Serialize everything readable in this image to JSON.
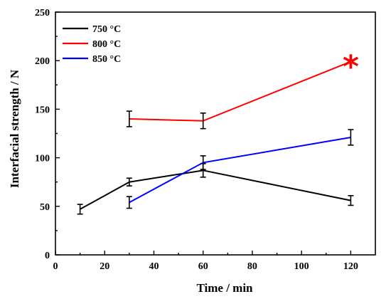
{
  "chart_data": {
    "type": "line",
    "xlabel": "Time / min",
    "ylabel": "Interfacial strength / N",
    "xlim": [
      0,
      130
    ],
    "ylim": [
      0,
      250
    ],
    "xticks": [
      0,
      20,
      40,
      60,
      80,
      100,
      120
    ],
    "yticks": [
      0,
      50,
      100,
      150,
      200,
      250
    ],
    "grid": false,
    "legend_position": "top-left",
    "series": [
      {
        "name": "750 °C",
        "color": "#000000",
        "points": [
          {
            "x": 10,
            "y": 47,
            "err": 5
          },
          {
            "x": 30,
            "y": 75,
            "err": 4
          },
          {
            "x": 60,
            "y": 87,
            "err": 7
          },
          {
            "x": 120,
            "y": 56,
            "err": 5
          }
        ]
      },
      {
        "name": "800 °C",
        "color": "#ff0000",
        "points": [
          {
            "x": 30,
            "y": 140,
            "err": 8
          },
          {
            "x": 60,
            "y": 138,
            "err": 8
          },
          {
            "x": 120,
            "y": 199,
            "err": 0
          }
        ]
      },
      {
        "name": "850 °C",
        "color": "#0000ff",
        "points": [
          {
            "x": 30,
            "y": 54,
            "err": 6
          },
          {
            "x": 60,
            "y": 95,
            "err": 7
          },
          {
            "x": 120,
            "y": 121,
            "err": 8
          }
        ]
      }
    ],
    "annotations": [
      {
        "text": "*",
        "x": 120,
        "y": 199,
        "color": "#ff0000"
      }
    ]
  }
}
